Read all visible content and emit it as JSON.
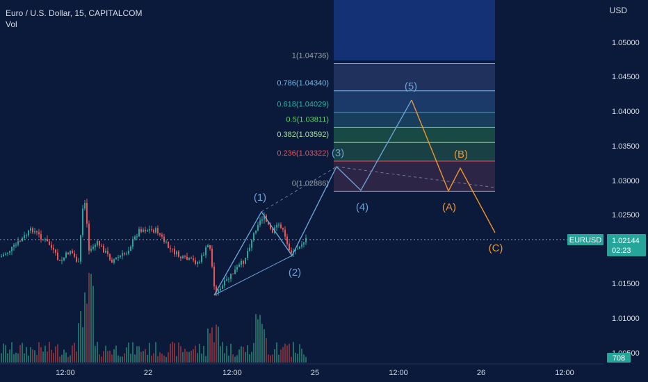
{
  "header": {
    "symbol_line": "Euro / U.S. Dollar, 15, CAPITALCOM",
    "indicator": "Vol"
  },
  "price_axis": {
    "unit": "USD",
    "ticks": [
      "1.05000",
      "1.04500",
      "1.04000",
      "1.03500",
      "1.03000",
      "1.02500",
      "1.01500",
      "1.01000",
      "1.00500"
    ],
    "current_symbol": "EURUSD",
    "current_price": "1.02144",
    "countdown": "02:23",
    "volume_value": "708"
  },
  "time_axis": {
    "ticks": [
      "12:00",
      "22",
      "12:00",
      "25",
      "12:00",
      "26",
      "12:00"
    ]
  },
  "fibonacci": {
    "levels": [
      {
        "label": "1(1.04736)",
        "price": 1.04736,
        "color": "#9aa0aa"
      },
      {
        "label": "0.786(1.04340)",
        "price": 1.0434,
        "color": "#7ab8e6"
      },
      {
        "label": "0.618(1.04029)",
        "price": 1.04029,
        "color": "#2ab3a3"
      },
      {
        "label": "0.5(1.03811)",
        "price": 1.03811,
        "color": "#5fd06a"
      },
      {
        "label": "0.382(1.03592)",
        "price": 1.03592,
        "color": "#a8e0a0"
      },
      {
        "label": "0.236(1.03322)",
        "price": 1.03322,
        "color": "#f05454"
      },
      {
        "label": "0(1.02886)",
        "price": 1.02886,
        "color": "#9aa0aa"
      }
    ]
  },
  "elliott": {
    "impulse_labels": [
      "(1)",
      "(2)",
      "(3)",
      "(4)",
      "(5)"
    ],
    "correction_labels": [
      "(A)",
      "(B)",
      "(C)"
    ],
    "impulse_color": "#6aa0d4",
    "correction_color": "#f0962a"
  },
  "colors": {
    "background": "#0b1a3a",
    "up": "#26a69a",
    "down": "#ef5350",
    "price_tag": "#26a69a"
  }
}
